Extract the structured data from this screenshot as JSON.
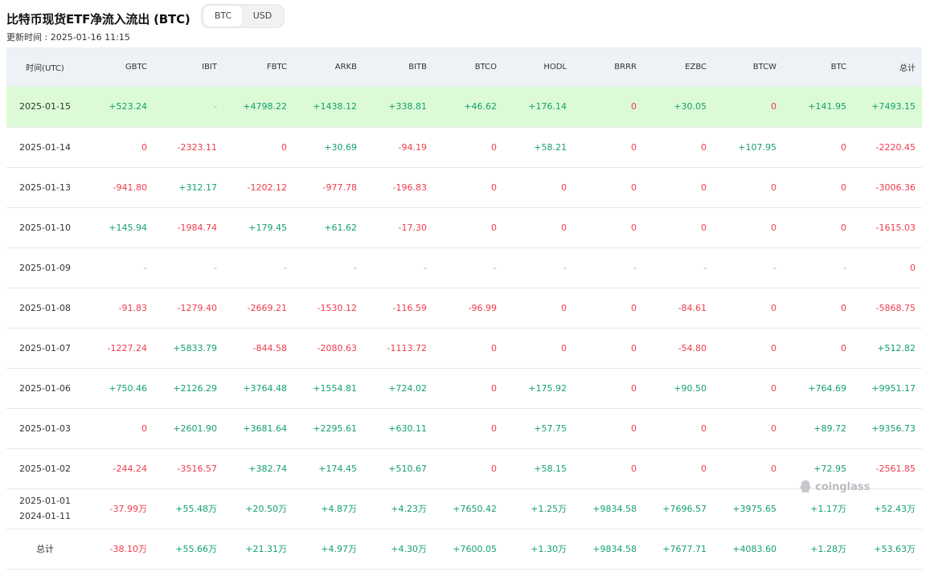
{
  "title": "比特币现货ETF净流入流出 (BTC)",
  "toggle": {
    "options": [
      "BTC",
      "USD"
    ],
    "selected": "BTC"
  },
  "updated": "更新时间 : 2025-01-16 11:15",
  "table": {
    "headers": [
      "时间(UTC)",
      "GBTC",
      "IBIT",
      "FBTC",
      "ARKB",
      "BITB",
      "BTCO",
      "HODL",
      "BRRR",
      "EZBC",
      "BTCW",
      "BTC",
      "总计"
    ],
    "rows": [
      {
        "date": [
          "2025-01-15"
        ],
        "highlight": true,
        "cells": [
          "+523.24",
          "-",
          "+4798.22",
          "+1438.12",
          "+338.81",
          "+46.62",
          "+176.14",
          "0",
          "+30.05",
          "0",
          "+141.95",
          "+7493.15"
        ]
      },
      {
        "date": [
          "2025-01-14"
        ],
        "cells": [
          "0",
          "-2323.11",
          "0",
          "+30.69",
          "-94.19",
          "0",
          "+58.21",
          "0",
          "0",
          "+107.95",
          "0",
          "-2220.45"
        ]
      },
      {
        "date": [
          "2025-01-13"
        ],
        "cells": [
          "-941.80",
          "+312.17",
          "-1202.12",
          "-977.78",
          "-196.83",
          "0",
          "0",
          "0",
          "0",
          "0",
          "0",
          "-3006.36"
        ]
      },
      {
        "date": [
          "2025-01-10"
        ],
        "cells": [
          "+145.94",
          "-1984.74",
          "+179.45",
          "+61.62",
          "-17.30",
          "0",
          "0",
          "0",
          "0",
          "0",
          "0",
          "-1615.03"
        ]
      },
      {
        "date": [
          "2025-01-09"
        ],
        "cells": [
          "-",
          "-",
          "-",
          "-",
          "-",
          "-",
          "-",
          "-",
          "-",
          "-",
          "-",
          "0"
        ]
      },
      {
        "date": [
          "2025-01-08"
        ],
        "cells": [
          "-91.83",
          "-1279.40",
          "-2669.21",
          "-1530.12",
          "-116.59",
          "-96.99",
          "0",
          "0",
          "-84.61",
          "0",
          "0",
          "-5868.75"
        ]
      },
      {
        "date": [
          "2025-01-07"
        ],
        "cells": [
          "-1227.24",
          "+5833.79",
          "-844.58",
          "-2080.63",
          "-1113.72",
          "0",
          "0",
          "0",
          "-54.80",
          "0",
          "0",
          "+512.82"
        ]
      },
      {
        "date": [
          "2025-01-06"
        ],
        "cells": [
          "+750.46",
          "+2126.29",
          "+3764.48",
          "+1554.81",
          "+724.02",
          "0",
          "+175.92",
          "0",
          "+90.50",
          "0",
          "+764.69",
          "+9951.17"
        ]
      },
      {
        "date": [
          "2025-01-03"
        ],
        "cells": [
          "0",
          "+2601.90",
          "+3681.64",
          "+2295.61",
          "+630.11",
          "0",
          "+57.75",
          "0",
          "0",
          "0",
          "+89.72",
          "+9356.73"
        ]
      },
      {
        "date": [
          "2025-01-02"
        ],
        "cells": [
          "-244.24",
          "-3516.57",
          "+382.74",
          "+174.45",
          "+510.67",
          "0",
          "+58.15",
          "0",
          "0",
          "0",
          "+72.95",
          "-2561.85"
        ]
      },
      {
        "date": [
          "2025-01-01",
          "2024-01-11"
        ],
        "cells": [
          "-37.99万",
          "+55.48万",
          "+20.50万",
          "+4.87万",
          "+4.23万",
          "+7650.42",
          "+1.25万",
          "+9834.58",
          "+7696.57",
          "+3975.65",
          "+1.17万",
          "+52.43万"
        ]
      },
      {
        "date": [
          "总计"
        ],
        "cells": [
          "-38.10万",
          "+55.66万",
          "+21.31万",
          "+4.97万",
          "+4.30万",
          "+7600.05",
          "+1.30万",
          "+9834.58",
          "+7677.71",
          "+4083.60",
          "+1.28万",
          "+53.63万"
        ]
      }
    ]
  },
  "watermark": "coinglass",
  "colors": {
    "positive": "#13a06f",
    "negative": "#ee3c4c",
    "highlight_row": "#dcfad6",
    "header_bg": "#eef1f5"
  }
}
